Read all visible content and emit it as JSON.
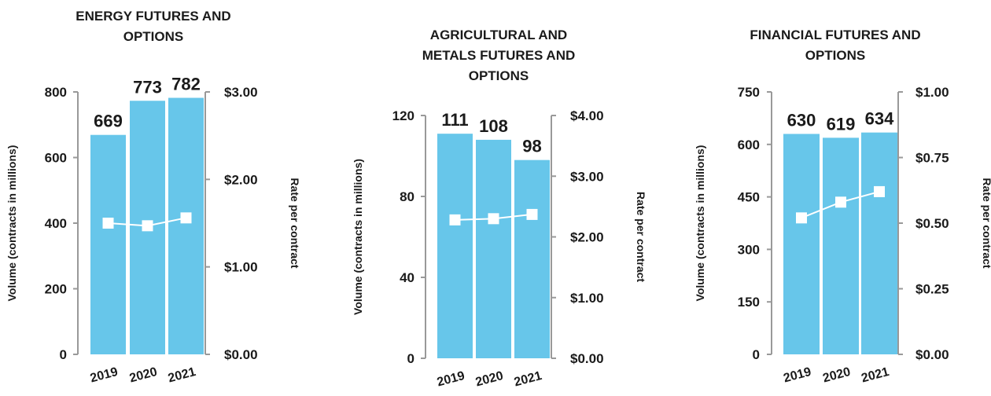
{
  "chart_data": [
    {
      "type": "bar",
      "title_lines": [
        "ENERGY FUTURES AND",
        "OPTIONS"
      ],
      "categories": [
        "2019",
        "2020",
        "2021"
      ],
      "series": [
        {
          "values": [
            669,
            773,
            782
          ],
          "axis": "left"
        },
        {
          "type": "line",
          "values": [
            1.5,
            1.47,
            1.56
          ],
          "axis": "right"
        }
      ],
      "data_labels": [
        "669",
        "773",
        "782"
      ],
      "ylabel": "Volume (contracts in millions)",
      "y2label": "Rate per contract",
      "ylim": [
        0,
        800
      ],
      "y2lim": [
        0,
        3
      ],
      "yticks": [
        0,
        200,
        400,
        600,
        800
      ],
      "yticklabels": [
        "0",
        "200",
        "400",
        "600",
        "800"
      ],
      "y2ticks": [
        0,
        1,
        2,
        3
      ],
      "y2ticklabels": [
        "$0.00",
        "$1.00",
        "$2.00",
        "$3.00"
      ],
      "grid": false,
      "colors": {
        "bar": "#67c6ea",
        "line": "#ffffff",
        "axis": "#999999"
      }
    },
    {
      "type": "bar",
      "title_lines": [
        "AGRICULTURAL AND",
        "METALS FUTURES AND",
        "OPTIONS"
      ],
      "categories": [
        "2019",
        "2020",
        "2021"
      ],
      "series": [
        {
          "values": [
            111,
            108,
            98
          ],
          "axis": "left"
        },
        {
          "type": "line",
          "values": [
            2.28,
            2.3,
            2.37
          ],
          "axis": "right"
        }
      ],
      "data_labels": [
        "111",
        "108",
        "98"
      ],
      "ylabel": "Volume (contracts in millions)",
      "y2label": "Rate per contract",
      "ylim": [
        0,
        120
      ],
      "y2lim": [
        0,
        4
      ],
      "yticks": [
        0,
        40,
        80,
        120
      ],
      "yticklabels": [
        "0",
        "40",
        "80",
        "120"
      ],
      "y2ticks": [
        0,
        1,
        2,
        3,
        4
      ],
      "y2ticklabels": [
        "$0.00",
        "$1.00",
        "$2.00",
        "$3.00",
        "$4.00"
      ],
      "grid": false,
      "colors": {
        "bar": "#67c6ea",
        "line": "#ffffff",
        "axis": "#999999"
      }
    },
    {
      "type": "bar",
      "title_lines": [
        "FINANCIAL FUTURES AND",
        "OPTIONS"
      ],
      "categories": [
        "2019",
        "2020",
        "2021"
      ],
      "series": [
        {
          "values": [
            630,
            619,
            634
          ],
          "axis": "left"
        },
        {
          "type": "line",
          "values": [
            0.52,
            0.58,
            0.62
          ],
          "axis": "right"
        }
      ],
      "data_labels": [
        "630",
        "619",
        "634"
      ],
      "ylabel": "Volume (contracts in millions)",
      "y2label": "Rate per contract",
      "ylim": [
        0,
        750
      ],
      "y2lim": [
        0,
        1
      ],
      "yticks": [
        0,
        150,
        300,
        450,
        600,
        750
      ],
      "yticklabels": [
        "0",
        "150",
        "300",
        "450",
        "600",
        "750"
      ],
      "y2ticks": [
        0,
        0.25,
        0.5,
        0.75,
        1
      ],
      "y2ticklabels": [
        "$0.00",
        "$0.25",
        "$0.50",
        "$0.75",
        "$1.00"
      ],
      "grid": false,
      "colors": {
        "bar": "#67c6ea",
        "line": "#ffffff",
        "axis": "#999999"
      }
    }
  ]
}
